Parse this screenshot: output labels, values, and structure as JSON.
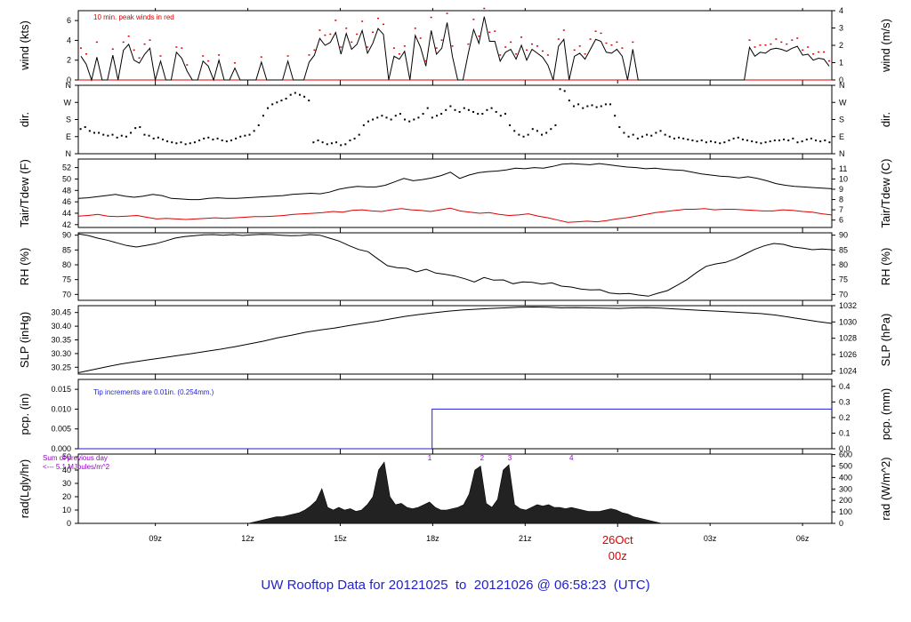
{
  "title": "UW Rooftop Data for 20121025  to  20121026 @ 06:58:23  (UTC)",
  "colors": {
    "line": "#000000",
    "red": "#dd0000",
    "blue": "#1f1fd6",
    "purple": "#9900cc",
    "title": "#2222cc"
  },
  "chart_data": [
    {
      "id": "wind",
      "type": "line",
      "ylabel_left": "wind (kts)",
      "ylabel_right": "wind (m/s)",
      "ylim": [
        0,
        7
      ],
      "ylim_right": [
        0,
        4
      ],
      "yticks": [
        "0",
        "2",
        "4",
        "6"
      ],
      "yticks_right": [
        "0",
        "1",
        "2",
        "3",
        "4"
      ],
      "annotation": "10 min. peak winds in red",
      "series": [
        {
          "style": "black",
          "values": [
            2.4,
            1.6,
            0.0,
            2.3,
            0.0,
            0.0,
            2.5,
            0.0,
            3.0,
            3.6,
            2.0,
            1.7,
            2.6,
            3.2,
            0.0,
            1.9,
            0.0,
            0.0,
            2.8,
            2.2,
            0.9,
            0.0,
            0.0,
            1.9,
            1.4,
            0.0,
            2.0,
            0.0,
            0.0,
            1.2,
            0.0,
            0.0,
            0.0,
            0.0,
            1.8,
            0.0,
            0.0,
            0.0,
            0.0,
            1.9,
            0.0,
            0.0,
            0.0,
            1.8,
            2.5,
            4.2,
            3.5,
            3.8,
            4.8,
            2.6,
            4.7,
            3.1,
            3.6,
            5.0,
            2.7,
            3.7,
            5.2,
            4.6,
            0.0,
            2.4,
            2.1,
            2.9,
            0.0,
            4.5,
            3.3,
            1.4,
            5.0,
            2.6,
            3.2,
            5.8,
            2.4,
            0.0,
            0.0,
            2.7,
            5.1,
            3.7,
            6.4,
            3.9,
            3.9,
            1.9,
            2.8,
            3.1,
            2.1,
            3.5,
            2.0,
            3.1,
            2.7,
            2.3,
            1.5,
            0.0,
            3.4,
            4.1,
            0.0,
            2.4,
            2.7,
            2.1,
            3.1,
            4.1,
            3.9,
            2.8,
            2.7,
            3.1,
            2.4,
            0.0,
            3.1,
            0.0,
            0.0,
            0.0,
            0.0,
            0.0,
            0.0,
            0.0,
            0.0,
            0.0,
            0.0,
            0.0,
            0.0,
            0.0,
            0.0,
            0.0,
            0.0,
            0.0,
            0.0,
            0.0,
            0.0,
            0.0,
            3.3,
            2.4,
            2.8,
            2.7,
            3.1,
            3.2,
            3.1,
            2.9,
            3.2,
            3.4,
            2.5,
            2.6,
            2.0,
            2.2,
            2.1,
            1.4
          ]
        },
        {
          "style": "red_peaks",
          "values": [
            3.2,
            2.6,
            0.0,
            3.8,
            0.0,
            0.0,
            3.1,
            0.0,
            3.8,
            4.4,
            3.0,
            2.2,
            3.6,
            4.0,
            0.0,
            2.4,
            0.0,
            0.0,
            3.3,
            3.2,
            1.5,
            0.0,
            0.0,
            2.4,
            1.9,
            0.0,
            2.5,
            0.0,
            0.0,
            1.7,
            0.0,
            0.0,
            0.0,
            0.0,
            2.3,
            0.0,
            0.0,
            0.0,
            0.0,
            2.4,
            0.0,
            0.0,
            0.0,
            2.5,
            3.0,
            5.0,
            4.5,
            4.6,
            6.0,
            3.3,
            5.2,
            3.8,
            4.6,
            5.9,
            3.3,
            4.8,
            6.2,
            5.6,
            0.0,
            3.2,
            2.6,
            3.4,
            0.0,
            5.2,
            4.2,
            1.9,
            6.3,
            3.2,
            4.0,
            6.7,
            3.4,
            0.0,
            0.0,
            3.6,
            6.1,
            4.4,
            7.2,
            4.8,
            4.9,
            2.5,
            3.3,
            3.8,
            2.6,
            4.3,
            3.0,
            3.6,
            3.4,
            2.9,
            2.5,
            0.0,
            4.1,
            5.0,
            0.0,
            3.0,
            3.4,
            2.6,
            4.1,
            4.9,
            4.7,
            3.7,
            3.5,
            3.8,
            3.2,
            0.0,
            3.8,
            0.0,
            0.0,
            0.0,
            0.0,
            0.0,
            0.0,
            0.0,
            0.0,
            0.0,
            0.0,
            0.0,
            0.0,
            0.0,
            0.0,
            0.0,
            0.0,
            0.0,
            0.0,
            0.0,
            0.0,
            0.0,
            4.0,
            3.3,
            3.5,
            3.5,
            3.6,
            4.1,
            3.8,
            3.6,
            4.0,
            4.2,
            3.0,
            3.3,
            2.6,
            2.8,
            2.8,
            1.9
          ]
        }
      ]
    },
    {
      "id": "dir",
      "type": "scatter",
      "ylabel_left": "dir.",
      "ylabel_right": "dir.",
      "ylim": [
        0,
        360
      ],
      "yticks": [
        "N",
        "E",
        "S",
        "W",
        "N"
      ],
      "yticks_right": [
        "N",
        "E",
        "S",
        "W",
        "N"
      ],
      "values": [
        130,
        140,
        120,
        110,
        110,
        100,
        95,
        100,
        85,
        95,
        90,
        110,
        135,
        140,
        100,
        95,
        80,
        85,
        75,
        65,
        60,
        55,
        60,
        50,
        55,
        60,
        70,
        80,
        85,
        75,
        80,
        70,
        65,
        70,
        80,
        90,
        95,
        100,
        120,
        150,
        200,
        240,
        260,
        270,
        280,
        290,
        310,
        320,
        310,
        300,
        280,
        60,
        70,
        60,
        50,
        55,
        60,
        45,
        50,
        70,
        80,
        100,
        150,
        170,
        180,
        190,
        200,
        190,
        180,
        200,
        210,
        180,
        170,
        180,
        190,
        210,
        240,
        190,
        200,
        210,
        230,
        250,
        230,
        220,
        240,
        230,
        220,
        210,
        210,
        230,
        240,
        220,
        200,
        210,
        150,
        120,
        100,
        90,
        100,
        130,
        120,
        100,
        110,
        130,
        150,
        340,
        330,
        280,
        250,
        260,
        240,
        250,
        255,
        245,
        250,
        260,
        260,
        200,
        140,
        110,
        90,
        100,
        80,
        90,
        100,
        95,
        110,
        120,
        100,
        90,
        80,
        85,
        80,
        75,
        70,
        65,
        70,
        60,
        65,
        60,
        55,
        60,
        70,
        80,
        85,
        75,
        70,
        65,
        60,
        55,
        60,
        65,
        70,
        70,
        75,
        70,
        80,
        60,
        65,
        75,
        80,
        70,
        65,
        70,
        60
      ]
    },
    {
      "id": "temp",
      "type": "line",
      "ylabel_left": "Tair/Tdew (F)",
      "ylabel_right": "Tair/Tdew (C)",
      "ylim": [
        41.5,
        53.5
      ],
      "ylim_right": [
        5.28,
        11.94
      ],
      "yticks": [
        "42",
        "44",
        "46",
        "48",
        "50",
        "52"
      ],
      "yticks_right": [
        "6",
        "7",
        "8",
        "9",
        "10",
        "11"
      ],
      "series": [
        {
          "name": "",
          "style": "black",
          "values": [
            46.6,
            46.7,
            46.9,
            47.1,
            47.3,
            47.0,
            46.8,
            47.0,
            47.3,
            47.1,
            46.6,
            46.5,
            46.4,
            46.4,
            46.6,
            46.7,
            46.6,
            46.6,
            46.7,
            46.8,
            46.9,
            47.0,
            47.1,
            47.3,
            47.4,
            47.5,
            47.4,
            47.7,
            48.2,
            48.5,
            48.7,
            48.6,
            48.6,
            48.9,
            49.5,
            50.1,
            49.7,
            49.9,
            50.2,
            50.6,
            51.2,
            50.1,
            50.7,
            51.1,
            51.3,
            51.4,
            51.6,
            51.9,
            51.8,
            52.0,
            51.9,
            52.2,
            52.6,
            52.7,
            52.6,
            52.5,
            52.7,
            52.5,
            52.3,
            52.1,
            52.0,
            51.8,
            51.9,
            51.7,
            51.6,
            51.5,
            51.2,
            50.9,
            50.7,
            50.5,
            50.4,
            50.2,
            50.4,
            50.1,
            49.7,
            49.2,
            48.9,
            48.7,
            48.6,
            48.5,
            48.4,
            48.3
          ]
        },
        {
          "name": "",
          "style": "red",
          "values": [
            43.5,
            43.6,
            43.8,
            43.5,
            43.4,
            43.5,
            43.6,
            43.3,
            43.0,
            43.1,
            43.0,
            42.9,
            43.0,
            43.1,
            43.2,
            43.1,
            43.2,
            43.3,
            43.4,
            43.4,
            43.5,
            43.6,
            43.8,
            43.9,
            44.0,
            44.1,
            44.3,
            44.2,
            44.5,
            44.6,
            44.4,
            44.3,
            44.6,
            44.8,
            44.6,
            44.5,
            44.3,
            44.6,
            44.9,
            44.4,
            44.2,
            44.0,
            44.1,
            43.8,
            43.6,
            43.7,
            43.9,
            43.5,
            43.2,
            42.8,
            42.4,
            42.5,
            42.6,
            42.5,
            42.7,
            43.0,
            43.2,
            43.5,
            43.8,
            44.1,
            44.3,
            44.5,
            44.7,
            44.7,
            44.8,
            44.6,
            44.7,
            44.7,
            44.6,
            44.5,
            44.4,
            44.4,
            44.6,
            44.5,
            44.3,
            44.2,
            43.9,
            43.7
          ]
        }
      ]
    },
    {
      "id": "rh",
      "type": "line",
      "ylabel_left": "RH (%)",
      "ylabel_right": "RH (%)",
      "ylim": [
        68,
        90.8
      ],
      "yticks": [
        "70",
        "75",
        "80",
        "85",
        "90"
      ],
      "yticks_right": [
        "70",
        "75",
        "80",
        "85",
        "90"
      ],
      "values": [
        90.4,
        89.9,
        89.0,
        88.3,
        87.4,
        86.5,
        86.0,
        86.5,
        87.1,
        88.0,
        89.0,
        89.5,
        89.8,
        90.1,
        90.2,
        90.0,
        90.2,
        89.9,
        90.1,
        90.3,
        90.2,
        90.0,
        89.8,
        89.9,
        90.2,
        90.0,
        89.0,
        88.0,
        86.5,
        85.2,
        84.4,
        82.0,
        79.7,
        79.0,
        78.8,
        77.6,
        78.5,
        77.2,
        76.8,
        76.2,
        75.3,
        74.2,
        75.7,
        74.8,
        74.9,
        73.6,
        74.2,
        74.1,
        73.5,
        73.9,
        72.8,
        72.5,
        71.8,
        71.5,
        71.6,
        70.5,
        70.2,
        70.3,
        69.8,
        69.4,
        70.4,
        71.3,
        73.1,
        75.0,
        77.4,
        79.5,
        80.3,
        80.8,
        82.0,
        83.6,
        85.2,
        86.4,
        87.2,
        86.9,
        86.0,
        85.6,
        85.1,
        85.3,
        85.1
      ]
    },
    {
      "id": "slp",
      "type": "line",
      "ylabel_left": "SLP (inHg)",
      "ylabel_right": "SLP (hPa)",
      "ylim": [
        30.225,
        30.475
      ],
      "ylim_right": [
        1023.6,
        1032.0
      ],
      "yticks": [
        "30.25",
        "30.30",
        "30.35",
        "30.40",
        "30.45"
      ],
      "yticks_right": [
        "1024",
        "1026",
        "1028",
        "1030",
        "1032"
      ],
      "values": [
        30.23,
        30.241,
        30.252,
        30.262,
        30.27,
        30.278,
        30.285,
        30.293,
        30.3,
        30.308,
        30.316,
        30.325,
        30.335,
        30.345,
        30.357,
        30.367,
        30.378,
        30.386,
        30.393,
        30.402,
        30.41,
        30.418,
        30.427,
        30.436,
        30.443,
        30.449,
        30.455,
        30.459,
        30.462,
        30.465,
        30.467,
        30.469,
        30.47,
        30.469,
        30.467,
        30.468,
        30.467,
        30.466,
        30.465,
        30.467,
        30.468,
        30.466,
        30.463,
        30.46,
        30.457,
        30.455,
        30.452,
        30.449,
        30.446,
        30.441,
        30.433,
        30.425,
        30.417,
        30.41
      ]
    },
    {
      "id": "pcp",
      "type": "line",
      "ylabel_left": "pcp. (in)",
      "ylabel_right": "pcp. (mm)",
      "ylim": [
        0,
        0.0175
      ],
      "ylim_right": [
        0,
        0.4445
      ],
      "yticks": [
        "0.000",
        "0.005",
        "0.010",
        "0.015"
      ],
      "yticks_right": [
        "0.0",
        "0.1",
        "0.2",
        "0.3",
        "0.4"
      ],
      "annotation": "Tip increments are 0.01in. (0.254mm.)",
      "x": [
        6.5,
        17.98,
        17.98,
        30.95
      ],
      "values": [
        0.0,
        0.0,
        0.01,
        0.01
      ]
    },
    {
      "id": "rad",
      "type": "area",
      "ylabel_left": "rad(Lgly/hr)",
      "ylabel_right": "rad (W/m^2)",
      "ylim": [
        0,
        52
      ],
      "ylim_right": [
        0,
        604.6
      ],
      "yticks": [
        "0",
        "10",
        "20",
        "30",
        "40",
        "50"
      ],
      "yticks_right": [
        "0",
        "100",
        "200",
        "300",
        "400",
        "500",
        "600"
      ],
      "annotation": [
        "Sum of previous day",
        "<--- 5.1 MJoules/m^2"
      ],
      "markers": [
        "1",
        "2",
        "3",
        "4"
      ],
      "values": [
        0,
        0,
        0,
        0,
        0,
        0,
        0,
        0,
        0,
        0,
        0,
        0,
        0,
        0,
        0,
        0,
        0,
        0,
        0,
        0,
        0,
        0,
        0,
        0,
        0,
        0,
        0,
        0,
        0,
        0,
        0,
        1,
        2,
        3,
        4,
        5,
        5,
        6,
        7,
        8,
        10,
        13,
        17,
        26,
        12,
        10,
        12,
        10,
        11,
        9,
        10,
        14,
        20,
        40,
        46,
        20,
        14,
        15,
        12,
        11,
        12,
        14,
        16,
        12,
        10,
        10,
        11,
        12,
        14,
        22,
        40,
        43,
        15,
        12,
        18,
        40,
        44,
        14,
        11,
        10,
        12,
        14,
        13,
        14,
        12,
        12,
        11,
        12,
        11,
        10,
        9,
        9,
        9,
        10,
        11,
        10,
        8,
        7,
        5,
        4,
        3,
        2,
        1,
        0,
        0,
        0,
        0,
        0,
        0,
        0,
        0,
        0,
        0,
        0,
        0,
        0,
        0,
        0,
        0,
        0,
        0,
        0,
        0,
        0,
        0,
        0,
        0,
        0,
        0,
        0,
        0,
        0,
        0,
        0
      ]
    }
  ],
  "x_axis": {
    "range": [
      6.5,
      30.95
    ],
    "ticks": [
      "09z",
      "12z",
      "15z",
      "18z",
      "21z",
      "03z",
      "06z"
    ],
    "tick_hours": [
      9,
      12,
      15,
      18,
      21,
      27,
      30
    ],
    "date_label": "26Oct",
    "date_sub": "00z"
  }
}
